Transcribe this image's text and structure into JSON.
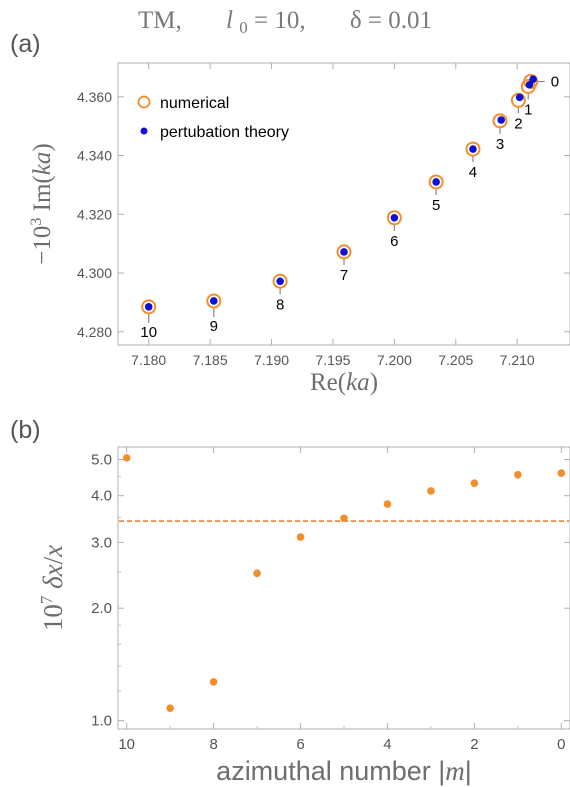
{
  "figure": {
    "title_parts": [
      "TM,",
      "l",
      "0",
      " = 10,",
      "δ = 0.01"
    ],
    "panel_a_label": "(a)",
    "panel_b_label": "(b)"
  },
  "chart_data": [
    {
      "type": "scatter",
      "panel": "a",
      "xlabel": "Re(ka)",
      "ylabel": "−10³ Im(ka)",
      "xlim": [
        7.1775,
        7.2143
      ],
      "ylim": [
        4.2755,
        4.3715
      ],
      "xticks": [
        7.18,
        7.185,
        7.19,
        7.195,
        7.2,
        7.205,
        7.21
      ],
      "xtick_labels": [
        "7.180",
        "7.185",
        "7.190",
        "7.195",
        "7.200",
        "7.205",
        "7.210"
      ],
      "yticks": [
        4.28,
        4.3,
        4.32,
        4.34,
        4.36
      ],
      "ytick_labels": [
        "4.280",
        "4.300",
        "4.320",
        "4.340",
        "4.360"
      ],
      "grid": false,
      "legend_position": "top-left",
      "colors": {
        "numerical": "#f28e2b",
        "perturbation": "#1010d0"
      },
      "series": [
        {
          "name": "numerical",
          "marker": "open-circle",
          "x": [
            7.18,
            7.1853,
            7.1907,
            7.1959,
            7.2,
            7.2034,
            7.2064,
            7.2086,
            7.2101,
            7.2109,
            7.2111
          ],
          "y": [
            4.2885,
            4.2905,
            4.2972,
            4.3072,
            4.3188,
            4.331,
            4.3422,
            4.3518,
            4.3588,
            4.3635,
            4.3652
          ]
        },
        {
          "name": "pertubation theory",
          "marker": "filled-dot",
          "x": [
            7.18,
            7.1853,
            7.1907,
            7.1959,
            7.2,
            7.2034,
            7.2064,
            7.2087,
            7.2102,
            7.211,
            7.2113
          ],
          "y": [
            4.2885,
            4.2905,
            4.2972,
            4.3072,
            4.3188,
            4.331,
            4.3422,
            4.3521,
            4.3598,
            4.3641,
            4.366
          ]
        }
      ],
      "point_labels": [
        "10",
        "9",
        "8",
        "7",
        "6",
        "5",
        "4",
        "3",
        "2",
        "1",
        "0"
      ]
    },
    {
      "type": "scatter",
      "panel": "b",
      "xlabel": "azimuthal number |m|",
      "ylabel": "10⁷ δx/x",
      "y_scale": "log",
      "x_reversed": true,
      "xlim": [
        10.2,
        -0.2
      ],
      "ylim": [
        0.95,
        5.4
      ],
      "xticks": [
        10,
        8,
        6,
        4,
        2,
        0
      ],
      "xtick_labels": [
        "10",
        "8",
        "6",
        "4",
        "2",
        "0"
      ],
      "yticks": [
        1.0,
        2.0,
        3.0,
        4.0,
        5.0
      ],
      "ytick_labels": [
        "1.0",
        "2.0",
        "3.0",
        "4.0",
        "5.0"
      ],
      "grid": false,
      "colors": {
        "points": "#f28e2b",
        "reference_line": "#f07020"
      },
      "reference_line": {
        "y": 3.42,
        "style": "dashed"
      },
      "series": [
        {
          "x": [
            10,
            9,
            8,
            7,
            6,
            5,
            4,
            3,
            2,
            1,
            0
          ],
          "y": [
            5.05,
            1.08,
            1.27,
            2.48,
            3.1,
            3.48,
            3.8,
            4.12,
            4.32,
            4.55,
            4.6
          ]
        }
      ]
    }
  ]
}
